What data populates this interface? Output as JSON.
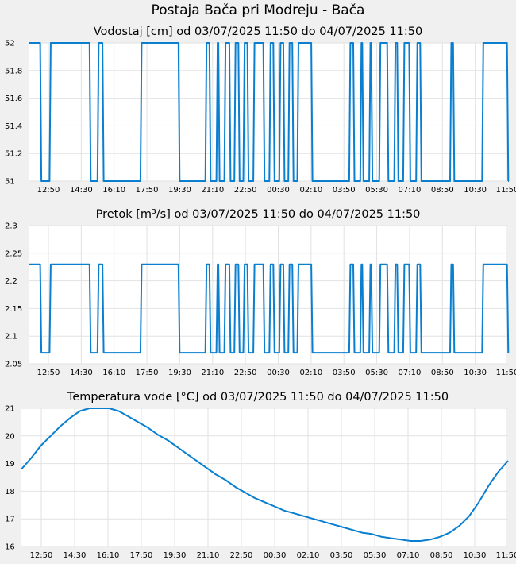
{
  "header": {
    "title": "Postaja Bača pri Modreju - Bača"
  },
  "colors": {
    "line": "#0a7fd0",
    "grid": "#e2e2e2",
    "plot_bg": "#ffffff",
    "page_bg": "#f0f0f0"
  },
  "chart_data": [
    {
      "type": "line",
      "title": "Vodostaj [cm] od 03/07/2025 11:50 do 04/07/2025 11:50",
      "xlabel": "",
      "ylabel": "",
      "x_ticks": [
        "12:50",
        "14:30",
        "16:10",
        "17:50",
        "19:30",
        "21:10",
        "22:50",
        "00:30",
        "02:10",
        "03:50",
        "05:30",
        "07:10",
        "08:50",
        "10:30",
        "11:50"
      ],
      "x_range_hours": [
        0,
        24
      ],
      "ylim": [
        51,
        52
      ],
      "y_ticks": [
        "51",
        "51.2",
        "51.4",
        "51.6",
        "51.8",
        "52"
      ],
      "grid": true,
      "series": [
        {
          "low": 51,
          "high": 52,
          "high_intervals_hours": [
            [
              0,
              0.58
            ],
            [
              1.05,
              3.05
            ],
            [
              3.45,
              3.7
            ],
            [
              5.6,
              7.5
            ],
            [
              8.85,
              9.05
            ],
            [
              9.4,
              9.5
            ],
            [
              9.8,
              10.05
            ],
            [
              10.3,
              10.5
            ],
            [
              10.75,
              10.95
            ],
            [
              11.25,
              11.75
            ],
            [
              12.05,
              12.25
            ],
            [
              12.55,
              12.75
            ],
            [
              13.0,
              13.2
            ],
            [
              13.45,
              14.15
            ],
            [
              16.05,
              16.25
            ],
            [
              16.6,
              16.7
            ],
            [
              17.05,
              17.15
            ],
            [
              17.55,
              17.95
            ],
            [
              18.3,
              18.45
            ],
            [
              18.75,
              19.05
            ],
            [
              19.4,
              19.6
            ],
            [
              21.1,
              21.25
            ],
            [
              22.7,
              23.95
            ]
          ]
        }
      ]
    },
    {
      "type": "line",
      "title": "Pretok [m³/s] od 03/07/2025 11:50 do 04/07/2025 11:50",
      "xlabel": "",
      "ylabel": "",
      "x_ticks": [
        "12:50",
        "14:30",
        "16:10",
        "17:50",
        "19:30",
        "21:10",
        "22:50",
        "00:30",
        "02:10",
        "03:50",
        "05:30",
        "07:10",
        "08:50",
        "10:30",
        "11:50"
      ],
      "x_range_hours": [
        0,
        24
      ],
      "ylim": [
        2.05,
        2.3
      ],
      "y_ticks": [
        "2.05",
        "2.1",
        "2.15",
        "2.2",
        "2.25",
        "2.3"
      ],
      "grid": true,
      "series": [
        {
          "low": 2.07,
          "high": 2.23,
          "high_intervals_hours": [
            [
              0,
              0.58
            ],
            [
              1.05,
              3.05
            ],
            [
              3.45,
              3.7
            ],
            [
              5.6,
              7.5
            ],
            [
              8.85,
              9.05
            ],
            [
              9.4,
              9.5
            ],
            [
              9.8,
              10.05
            ],
            [
              10.3,
              10.5
            ],
            [
              10.75,
              10.95
            ],
            [
              11.25,
              11.75
            ],
            [
              12.05,
              12.25
            ],
            [
              12.55,
              12.75
            ],
            [
              13.0,
              13.2
            ],
            [
              13.45,
              14.15
            ],
            [
              16.05,
              16.25
            ],
            [
              16.6,
              16.7
            ],
            [
              17.05,
              17.15
            ],
            [
              17.55,
              17.95
            ],
            [
              18.3,
              18.45
            ],
            [
              18.75,
              19.05
            ],
            [
              19.4,
              19.6
            ],
            [
              21.1,
              21.25
            ],
            [
              22.7,
              23.95
            ]
          ]
        }
      ]
    },
    {
      "type": "line",
      "title": "Temperatura vode [°C] od 03/07/2025 11:50 do 04/07/2025 11:50",
      "xlabel": "",
      "ylabel": "",
      "x_ticks": [
        "12:50",
        "14:30",
        "16:10",
        "17:50",
        "19:30",
        "21:10",
        "22:50",
        "00:30",
        "02:10",
        "03:50",
        "05:30",
        "07:10",
        "08:50",
        "10:30",
        "11:50"
      ],
      "x_range_hours": [
        0,
        24
      ],
      "ylim": [
        16,
        21
      ],
      "y_ticks": [
        "16",
        "17",
        "18",
        "19",
        "20",
        "21"
      ],
      "grid": true,
      "series": [
        {
          "points_hours_value": [
            [
              0,
              18.8
            ],
            [
              0.5,
              19.2
            ],
            [
              1,
              19.65
            ],
            [
              1.5,
              20.0
            ],
            [
              2,
              20.35
            ],
            [
              2.5,
              20.65
            ],
            [
              3,
              20.9
            ],
            [
              3.5,
              21.0
            ],
            [
              4,
              21.0
            ],
            [
              4.5,
              21.0
            ],
            [
              5,
              20.9
            ],
            [
              5.5,
              20.7
            ],
            [
              6,
              20.5
            ],
            [
              6.5,
              20.3
            ],
            [
              7,
              20.05
            ],
            [
              7.5,
              19.85
            ],
            [
              8,
              19.6
            ],
            [
              8.5,
              19.35
            ],
            [
              9,
              19.1
            ],
            [
              9.5,
              18.85
            ],
            [
              10,
              18.6
            ],
            [
              10.5,
              18.4
            ],
            [
              11,
              18.15
            ],
            [
              11.5,
              17.95
            ],
            [
              12,
              17.75
            ],
            [
              12.5,
              17.6
            ],
            [
              13,
              17.45
            ],
            [
              13.5,
              17.3
            ],
            [
              14,
              17.2
            ],
            [
              14.5,
              17.1
            ],
            [
              15,
              17.0
            ],
            [
              15.5,
              16.9
            ],
            [
              16,
              16.8
            ],
            [
              16.5,
              16.7
            ],
            [
              17,
              16.6
            ],
            [
              17.5,
              16.5
            ],
            [
              18,
              16.45
            ],
            [
              18.5,
              16.35
            ],
            [
              19,
              16.3
            ],
            [
              19.5,
              16.25
            ],
            [
              20,
              16.2
            ],
            [
              20.5,
              16.2
            ],
            [
              21,
              16.25
            ],
            [
              21.5,
              16.35
            ],
            [
              22,
              16.5
            ],
            [
              22.5,
              16.75
            ],
            [
              23,
              17.1
            ],
            [
              23.5,
              17.6
            ],
            [
              24,
              18.2
            ],
            [
              24.5,
              18.7
            ],
            [
              25,
              19.1
            ]
          ]
        }
      ]
    }
  ]
}
